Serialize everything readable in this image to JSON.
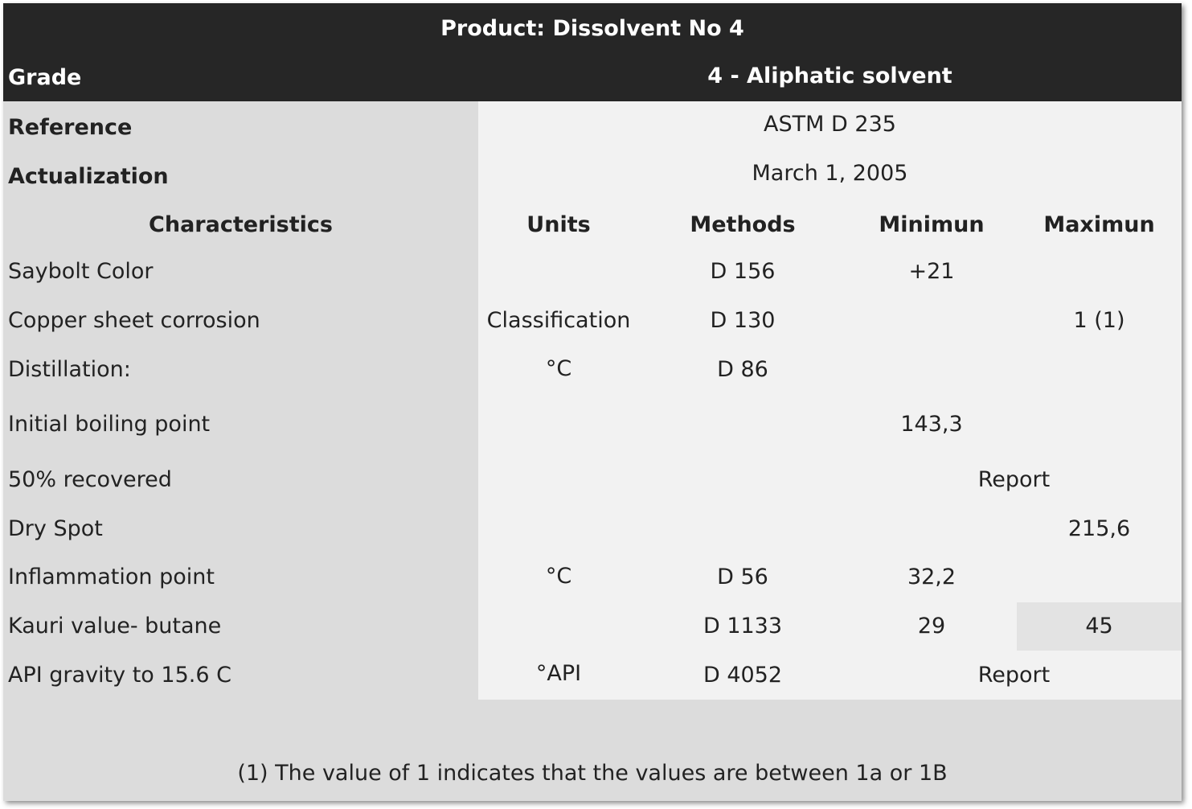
{
  "title": "Product: Dissolvent No 4",
  "grade": {
    "label": "Grade",
    "value": "4 - Aliphatic solvent"
  },
  "reference": {
    "label": "Reference",
    "value": "ASTM D 235"
  },
  "actualization": {
    "label": "Actualization",
    "value": "March 1, 2005"
  },
  "columns": {
    "characteristics": "Characteristics",
    "units": "Units",
    "methods": "Methods",
    "minimum": "Minimun",
    "maximum": "Maximun"
  },
  "rows": [
    {
      "name": "Saybolt Color",
      "units": "",
      "method": "D 156",
      "min": "+21",
      "max": ""
    },
    {
      "name": "Copper sheet corrosion",
      "units": "Classification",
      "method": "D 130",
      "min": "",
      "max": "1 (1)"
    },
    {
      "name": "Distillation:",
      "units": "°C",
      "method": "D 86",
      "min": "",
      "max": ""
    },
    {
      "name": "Initial boiling point",
      "units": "",
      "method": "",
      "min": "143,3",
      "max": ""
    },
    {
      "name": "50% recovered",
      "units": "",
      "method": "",
      "span": "Report"
    },
    {
      "name": "Dry Spot",
      "units": "",
      "method": "",
      "min": "",
      "max": "215,6"
    },
    {
      "name": "Inflammation point",
      "units": "°C",
      "method": "D 56",
      "min": "32,2",
      "max": ""
    },
    {
      "name": "Kauri value- butane",
      "units": "",
      "method": "D 1133",
      "min": "29",
      "max": "45"
    },
    {
      "name": "API gravity to 15.6 C",
      "units": "°API",
      "method": "D 4052",
      "span": "Report"
    }
  ],
  "footnote": "(1) The value of 1 indicates that the values are between 1a or 1B"
}
